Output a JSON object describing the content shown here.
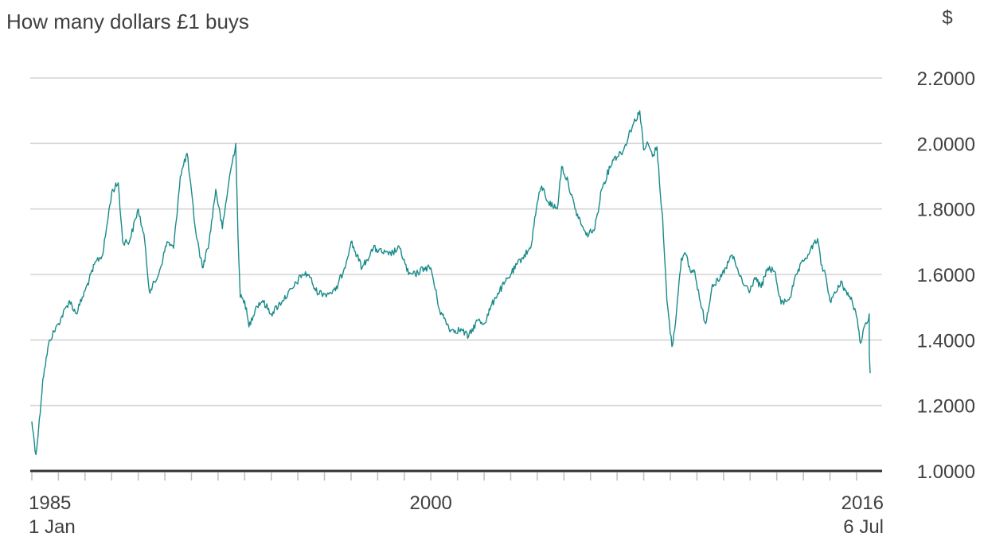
{
  "chart_data": {
    "type": "line",
    "title": "How many dollars £1 buys",
    "unit_label": "$",
    "xlim": [
      "1985-01-01",
      "2016-07-06"
    ],
    "ylim": [
      1.0,
      2.2
    ],
    "y_ticks": [
      {
        "value": 1.0,
        "label": "1.0000"
      },
      {
        "value": 1.2,
        "label": "1.2000"
      },
      {
        "value": 1.4,
        "label": "1.4000"
      },
      {
        "value": 1.6,
        "label": "1.6000"
      },
      {
        "value": 1.8,
        "label": "1.8000"
      },
      {
        "value": 2.0,
        "label": "2.0000"
      },
      {
        "value": 2.2,
        "label": "2.2000"
      }
    ],
    "x_ticks": [
      {
        "value": "1985-01-01",
        "label": "1985",
        "sublabel": "1 Jan"
      },
      {
        "value": "2000-01-01",
        "label": "2000",
        "sublabel": ""
      },
      {
        "value": "2016-07-06",
        "label": "2016",
        "sublabel": "6 Jul"
      }
    ],
    "grid": true,
    "series": [
      {
        "color": "#1a8a8a",
        "x": [
          "1985-01-01",
          "1985-02-26",
          "1985-04-01",
          "1985-06-01",
          "1985-09-01",
          "1986-01-01",
          "1986-06-01",
          "1986-09-01",
          "1987-01-01",
          "1987-06-01",
          "1987-09-01",
          "1988-01-01",
          "1988-04-01",
          "1988-06-01",
          "1988-09-01",
          "1989-01-01",
          "1989-04-01",
          "1989-06-01",
          "1989-09-01",
          "1989-11-01",
          "1990-02-01",
          "1990-05-01",
          "1990-08-01",
          "1990-11-01",
          "1991-03-01",
          "1991-06-01",
          "1991-09-01",
          "1991-12-01",
          "1992-03-01",
          "1992-06-01",
          "1992-08-31",
          "1992-10-01",
          "1992-11-01",
          "1993-01-01",
          "1993-03-01",
          "1993-06-01",
          "1993-09-01",
          "1994-01-01",
          "1994-06-01",
          "1994-11-01",
          "1995-03-01",
          "1995-06-01",
          "1995-09-01",
          "1996-01-01",
          "1996-06-01",
          "1996-10-01",
          "1997-01-01",
          "1997-06-01",
          "1997-11-01",
          "1998-06-01",
          "1998-11-01",
          "1999-03-01",
          "1999-06-01",
          "1999-10-01",
          "2000-01-01",
          "2000-05-01",
          "2000-10-01",
          "2001-03-01",
          "2001-06-01",
          "2001-10-01",
          "2002-01-01",
          "2002-06-01",
          "2002-10-01",
          "2003-01-01",
          "2003-06-01",
          "2003-10-01",
          "2004-01-01",
          "2004-03-01",
          "2004-06-01",
          "2004-10-01",
          "2004-12-01",
          "2005-03-01",
          "2005-06-01",
          "2005-11-01",
          "2006-03-01",
          "2006-06-01",
          "2006-11-01",
          "2007-04-01",
          "2007-07-01",
          "2007-11-08",
          "2008-01-01",
          "2008-03-01",
          "2008-05-01",
          "2008-07-01",
          "2008-08-15",
          "2008-09-15",
          "2008-10-15",
          "2008-11-15",
          "2009-01-23",
          "2009-03-01",
          "2009-05-01",
          "2009-06-01",
          "2009-08-01",
          "2009-10-01",
          "2009-12-01",
          "2010-03-01",
          "2010-05-01",
          "2010-08-01",
          "2010-11-01",
          "2011-02-01",
          "2011-04-28",
          "2011-07-01",
          "2011-10-01",
          "2012-01-01",
          "2012-03-01",
          "2012-06-01",
          "2012-09-01",
          "2012-12-01",
          "2013-03-01",
          "2013-07-01",
          "2013-10-01",
          "2014-01-01",
          "2014-04-01",
          "2014-07-15",
          "2014-09-01",
          "2014-11-01",
          "2015-01-01",
          "2015-04-13",
          "2015-06-01",
          "2015-08-01",
          "2015-11-01",
          "2016-01-01",
          "2016-02-26",
          "2016-04-01",
          "2016-05-20",
          "2016-06-23",
          "2016-06-24",
          "2016-07-06"
        ],
        "y": [
          1.15,
          1.05,
          1.12,
          1.28,
          1.4,
          1.45,
          1.52,
          1.48,
          1.55,
          1.64,
          1.66,
          1.85,
          1.88,
          1.7,
          1.7,
          1.8,
          1.7,
          1.55,
          1.58,
          1.62,
          1.7,
          1.68,
          1.9,
          1.97,
          1.73,
          1.62,
          1.7,
          1.86,
          1.74,
          1.89,
          2.0,
          1.72,
          1.53,
          1.52,
          1.44,
          1.5,
          1.52,
          1.48,
          1.52,
          1.56,
          1.6,
          1.6,
          1.55,
          1.54,
          1.55,
          1.62,
          1.7,
          1.62,
          1.68,
          1.66,
          1.68,
          1.6,
          1.6,
          1.62,
          1.62,
          1.49,
          1.43,
          1.43,
          1.41,
          1.46,
          1.45,
          1.53,
          1.57,
          1.6,
          1.65,
          1.68,
          1.82,
          1.87,
          1.82,
          1.8,
          1.93,
          1.88,
          1.8,
          1.72,
          1.74,
          1.86,
          1.95,
          1.98,
          2.04,
          2.1,
          1.98,
          2.0,
          1.96,
          1.99,
          1.85,
          1.78,
          1.65,
          1.52,
          1.38,
          1.43,
          1.58,
          1.65,
          1.66,
          1.61,
          1.61,
          1.5,
          1.45,
          1.57,
          1.58,
          1.62,
          1.66,
          1.62,
          1.57,
          1.55,
          1.59,
          1.56,
          1.62,
          1.61,
          1.51,
          1.53,
          1.6,
          1.64,
          1.67,
          1.71,
          1.63,
          1.6,
          1.52,
          1.55,
          1.58,
          1.55,
          1.52,
          1.47,
          1.39,
          1.43,
          1.45,
          1.48,
          1.36,
          1.3
        ]
      }
    ]
  }
}
